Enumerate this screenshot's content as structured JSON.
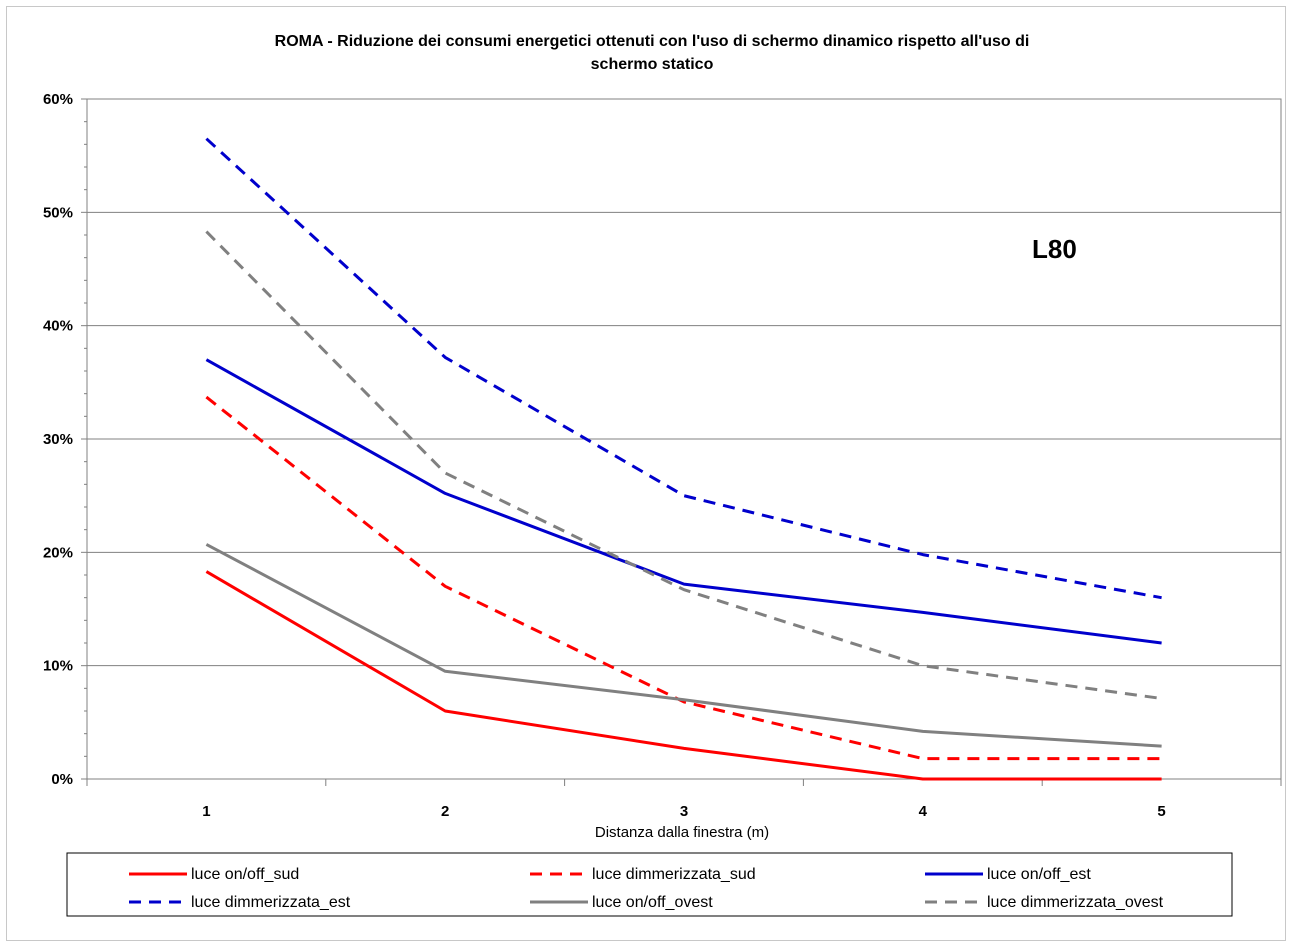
{
  "chart_data": {
    "type": "line",
    "title_lines": [
      "ROMA - Riduzione dei consumi energetici ottenuti con l'uso di schermo dinamico rispetto all'uso di",
      "schermo statico"
    ],
    "xlabel": "Distanza dalla finestra (m)",
    "ylabel": "",
    "categories": [
      "1",
      "2",
      "3",
      "4",
      "5"
    ],
    "ylim": [
      0,
      60
    ],
    "yticks": [
      "0%",
      "10%",
      "20%",
      "30%",
      "40%",
      "50%",
      "60%"
    ],
    "annotation": "L80",
    "grid": true,
    "legend_position": "bottom",
    "series": [
      {
        "name": "luce on/off_sud",
        "values": [
          18.3,
          6.0,
          2.7,
          0.0,
          0.0
        ],
        "color": "#ff0000",
        "dashed": false
      },
      {
        "name": "luce dimmerizzata_sud",
        "values": [
          33.7,
          17.0,
          6.8,
          1.8,
          1.8
        ],
        "color": "#ff0000",
        "dashed": true
      },
      {
        "name": "luce on/off_est",
        "values": [
          37.0,
          25.2,
          17.2,
          14.7,
          12.0
        ],
        "color": "#0000cc",
        "dashed": false
      },
      {
        "name": "luce dimmerizzata_est",
        "values": [
          56.5,
          37.2,
          25.0,
          19.8,
          16.0
        ],
        "color": "#0000cc",
        "dashed": true
      },
      {
        "name": "luce on/off_ovest",
        "values": [
          20.7,
          9.5,
          7.0,
          4.2,
          2.9
        ],
        "color": "#808080",
        "dashed": false
      },
      {
        "name": "luce dimmerizzata_ovest",
        "values": [
          48.3,
          27.0,
          16.7,
          10.0,
          7.1
        ],
        "color": "#808080",
        "dashed": true
      }
    ]
  }
}
